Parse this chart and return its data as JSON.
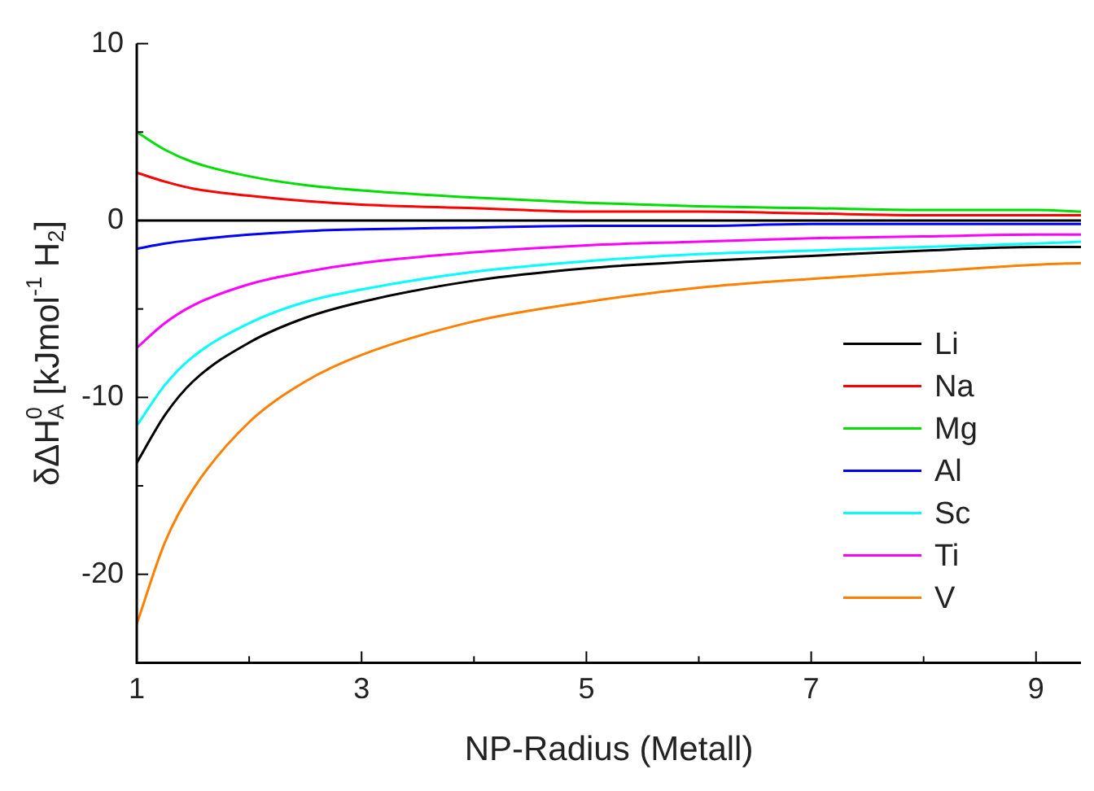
{
  "chart_data": {
    "type": "line",
    "xlabel": "NP-Radius (Metall)",
    "ylabel": "δΔH$_{A}$$^{0}$ [kJmol$^{-1}$ H$_{2}$]",
    "x": [
      1,
      1.25,
      1.5,
      2,
      2.5,
      3,
      4,
      5,
      6,
      7,
      8,
      9,
      9.4
    ],
    "series": [
      {
        "name": "Li",
        "color": "#000000",
        "values": [
          -13.7,
          -11.0,
          -9.1,
          -6.9,
          -5.5,
          -4.6,
          -3.4,
          -2.7,
          -2.3,
          -2.0,
          -1.7,
          -1.5,
          -1.5
        ]
      },
      {
        "name": "Na",
        "color": "#ff0000",
        "values": [
          2.7,
          2.2,
          1.8,
          1.4,
          1.1,
          0.9,
          0.7,
          0.5,
          0.5,
          0.4,
          0.3,
          0.3,
          0.3
        ]
      },
      {
        "name": "Mg",
        "color": "#00dd00",
        "values": [
          5.0,
          4.0,
          3.3,
          2.5,
          2.0,
          1.7,
          1.3,
          1.0,
          0.8,
          0.7,
          0.6,
          0.6,
          0.5
        ]
      },
      {
        "name": "Al",
        "color": "#0000ff",
        "values": [
          -1.6,
          -1.3,
          -1.1,
          -0.8,
          -0.6,
          -0.5,
          -0.4,
          -0.3,
          -0.3,
          -0.2,
          -0.2,
          -0.2,
          -0.2
        ]
      },
      {
        "name": "Sc",
        "color": "#00ffff",
        "values": [
          -11.6,
          -9.3,
          -7.7,
          -5.8,
          -4.6,
          -3.9,
          -2.9,
          -2.3,
          -1.9,
          -1.7,
          -1.5,
          -1.3,
          -1.2
        ]
      },
      {
        "name": "Ti",
        "color": "#ff00ff",
        "values": [
          -7.2,
          -5.8,
          -4.8,
          -3.6,
          -2.9,
          -2.4,
          -1.8,
          -1.4,
          -1.2,
          -1.0,
          -0.9,
          -0.8,
          -0.8
        ]
      },
      {
        "name": "V",
        "color": "#ff8000",
        "values": [
          -22.8,
          -18.2,
          -15.2,
          -11.4,
          -9.1,
          -7.6,
          -5.7,
          -4.6,
          -3.8,
          -3.3,
          -2.9,
          -2.5,
          -2.4
        ]
      }
    ],
    "xlim": [
      1,
      9.4
    ],
    "xticks": [
      1,
      {
        "value": 2,
        "label": null
      },
      3,
      {
        "value": 4,
        "label": null
      },
      5,
      {
        "value": 6,
        "label": null
      },
      7,
      {
        "value": 8,
        "label": null
      },
      9
    ],
    "ylim": [
      -25,
      10
    ],
    "yticks": [
      {
        "value": -25,
        "label": null
      },
      -20,
      {
        "value": -15,
        "label": null
      },
      -10,
      {
        "value": -5,
        "label": null
      },
      0,
      {
        "value": 5,
        "label": null
      },
      10
    ],
    "ref_lines": [
      {
        "axis": "y",
        "value": 0,
        "color": "#000000"
      }
    ],
    "grid": false,
    "legend": "right",
    "marker": "none",
    "line_style": "solid"
  }
}
